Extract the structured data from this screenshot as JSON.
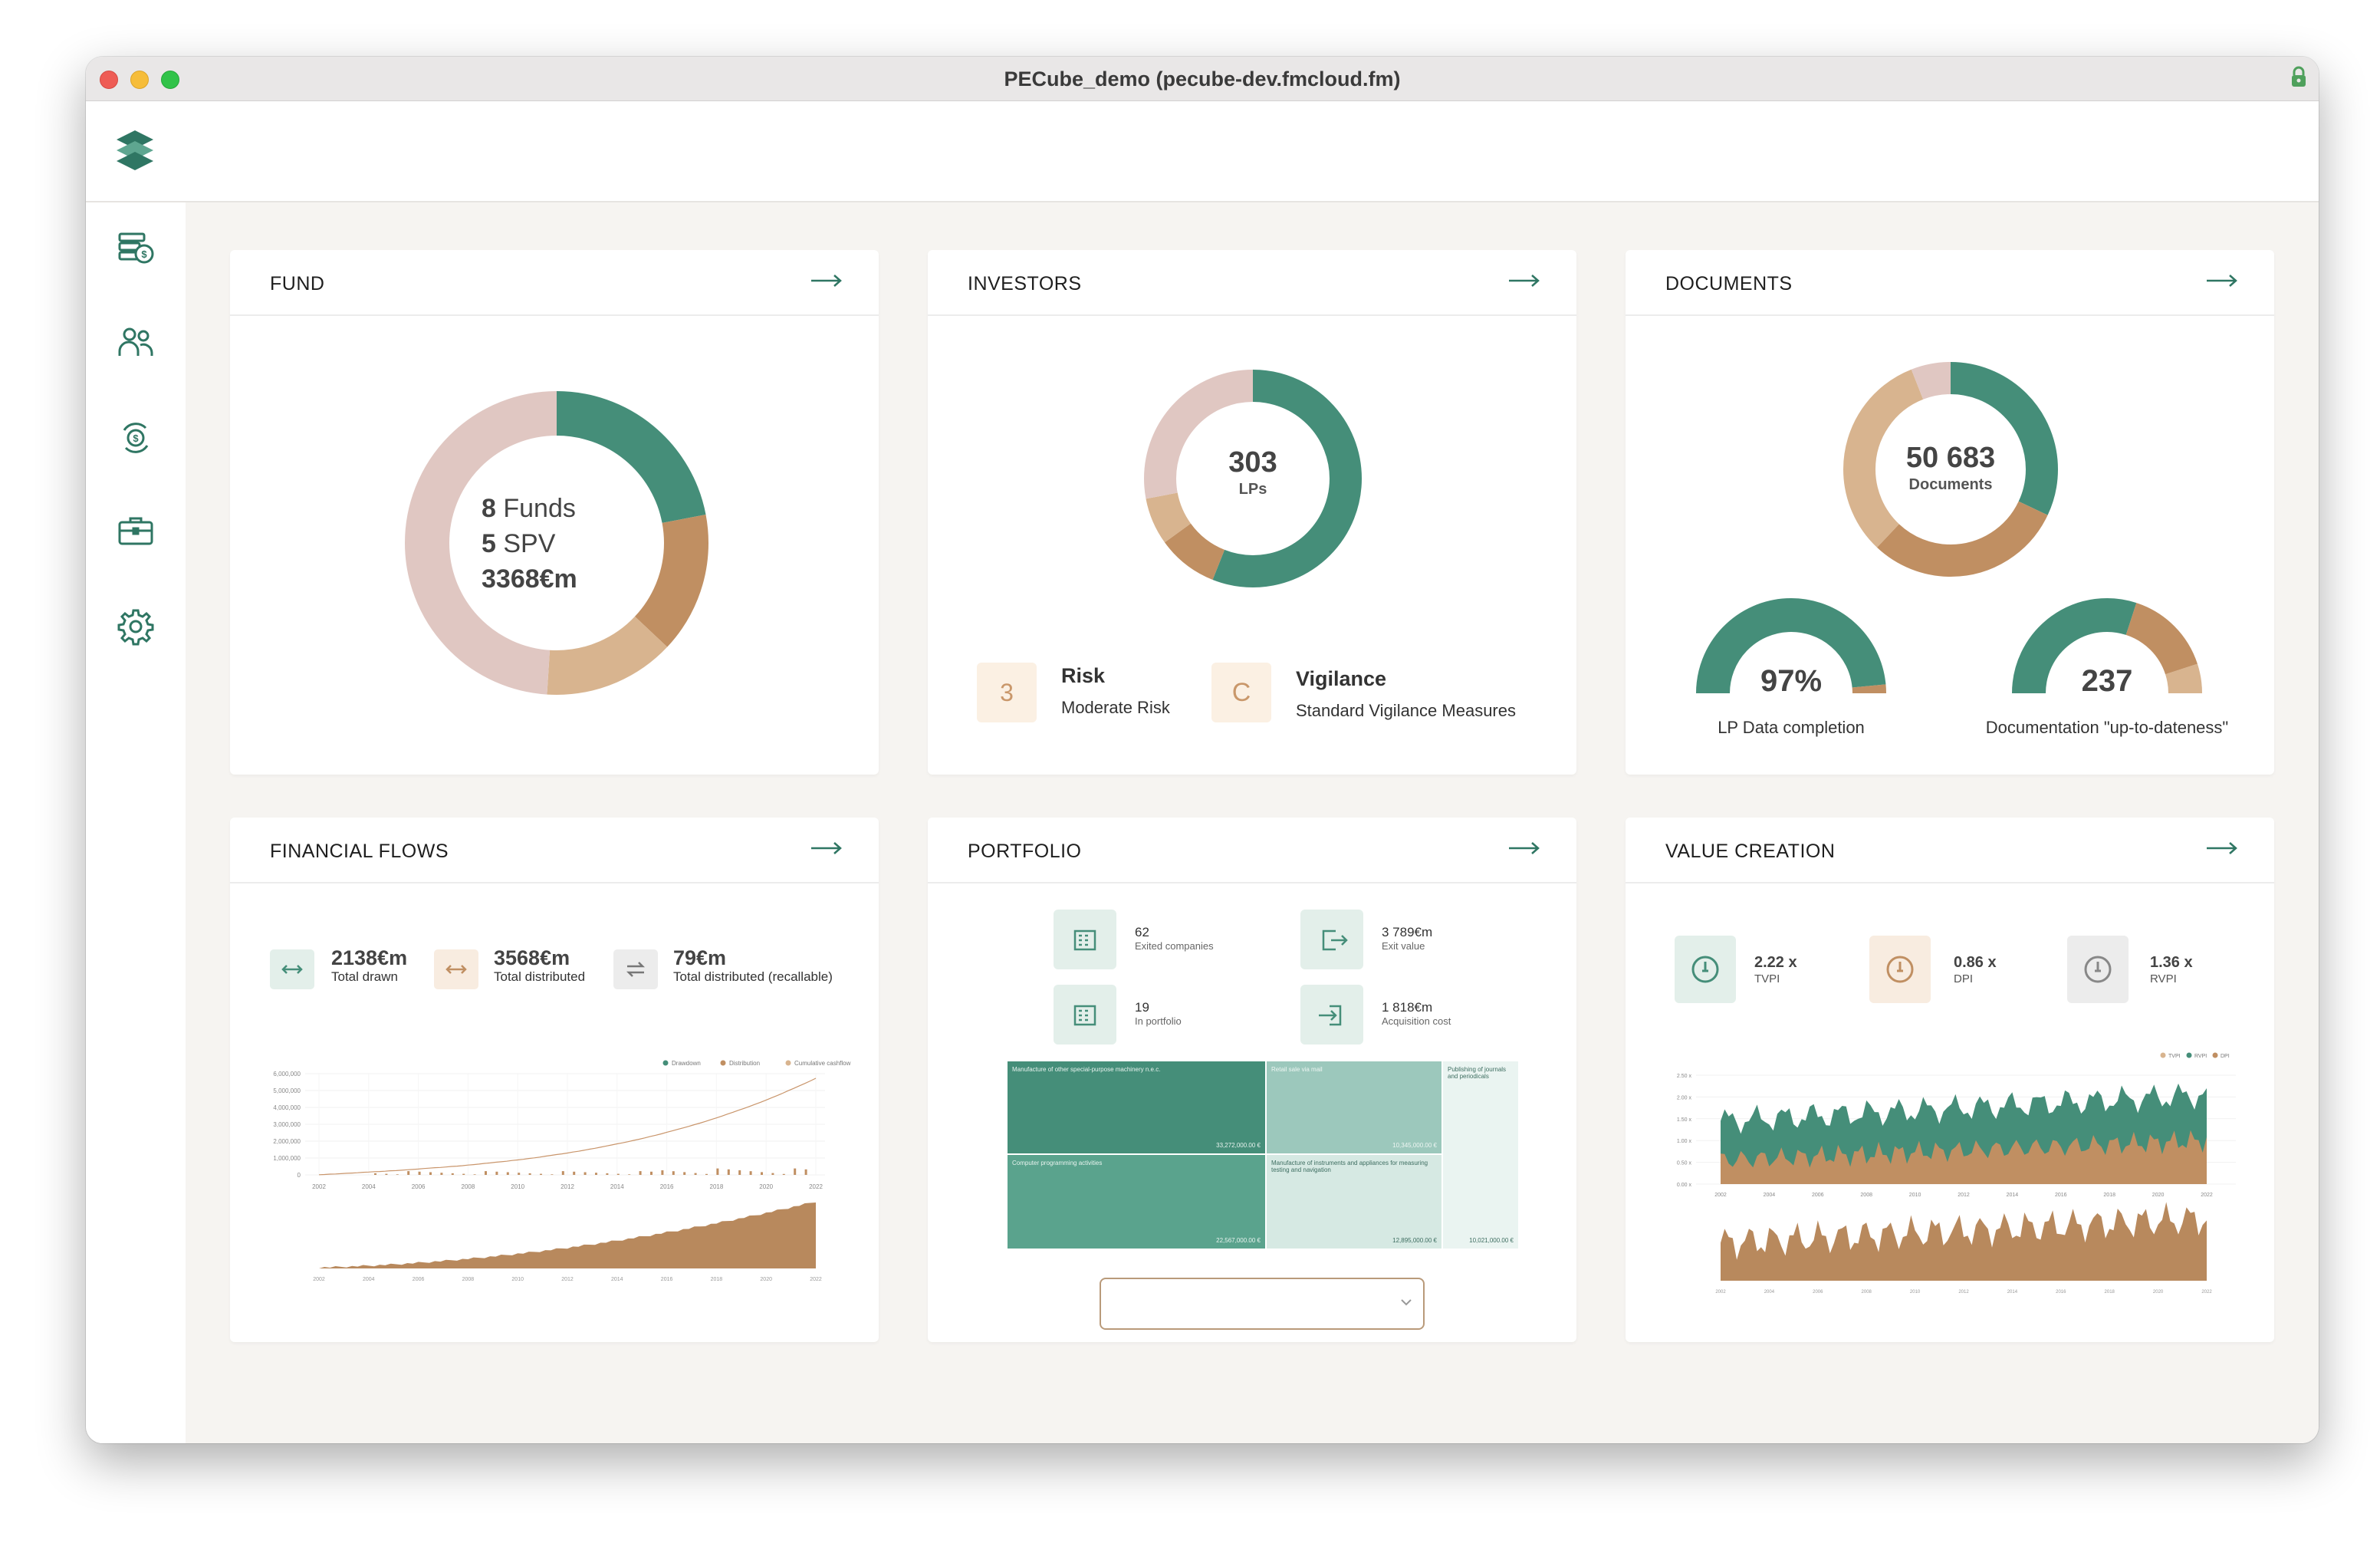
{
  "window": {
    "title": "PECube_demo (pecube-dev.fmcloud.fm)"
  },
  "colors": {
    "green": "#458e79",
    "tan": "#c08f62",
    "light_tan": "#d8b48f",
    "pink": "#e0c7c2",
    "light_green": "#9cc8bc",
    "pale_green": "#d6e9e3"
  },
  "sidebar": {
    "items": [
      {
        "icon": "money-stack-icon"
      },
      {
        "icon": "people-icon"
      },
      {
        "icon": "money-cycle-icon"
      },
      {
        "icon": "briefcase-icon"
      },
      {
        "icon": "gear-icon"
      }
    ]
  },
  "fund": {
    "title": "FUND",
    "line1_num": "8",
    "line1_label": "Funds",
    "line2_num": "5",
    "line2_label": "SPV",
    "line3": "3368€m",
    "donut": [
      {
        "value": 22,
        "color": "#458e79"
      },
      {
        "value": 15,
        "color": "#c08f62"
      },
      {
        "value": 14,
        "color": "#d8b48f"
      },
      {
        "value": 49,
        "color": "#e0c7c2"
      }
    ]
  },
  "investors": {
    "title": "INVESTORS",
    "count": "303",
    "count_label": "LPs",
    "donut": [
      {
        "value": 56,
        "color": "#458e79"
      },
      {
        "value": 9,
        "color": "#c08f62"
      },
      {
        "value": 7,
        "color": "#d8b48f"
      },
      {
        "value": 28,
        "color": "#e0c7c2"
      }
    ],
    "risk": {
      "badge": "3",
      "title": "Risk",
      "desc": "Moderate Risk"
    },
    "vigilance": {
      "badge": "C",
      "title": "Vigilance",
      "desc": "Standard Vigilance Measures"
    }
  },
  "documents": {
    "title": "DOCUMENTS",
    "count": "50 683",
    "count_label": "Documents",
    "donut": [
      {
        "value": 32,
        "color": "#458e79"
      },
      {
        "value": 30,
        "color": "#c08f62"
      },
      {
        "value": 32,
        "color": "#d8b48f"
      },
      {
        "value": 6,
        "color": "#e0c7c2"
      }
    ],
    "gauge1": {
      "value": "97%",
      "label": "LP Data completion",
      "fill": 0.97
    },
    "gauge2": {
      "value": "237",
      "label": "Documentation \"up-to-dateness\"",
      "fill_green": 0.6,
      "fill_tan": 0.3
    }
  },
  "flows": {
    "title": "FINANCIAL FLOWS",
    "drawn": {
      "value": "2138€m",
      "label": "Total drawn"
    },
    "distributed": {
      "value": "3568€m",
      "label": "Total distributed"
    },
    "recallable": {
      "value": "79€m",
      "label": "Total distributed (recallable)"
    },
    "legend": [
      "Drawdown",
      "Distribution",
      "Cumulative cashflow"
    ],
    "yticks": [
      "6,000,000",
      "5,000,000",
      "4,000,000",
      "3,000,000",
      "2,000,000",
      "1,000,000",
      "0"
    ],
    "xticks": [
      "2002",
      "2004",
      "2006",
      "2008",
      "2010",
      "2012",
      "2014",
      "2016",
      "2018",
      "2020",
      "2022"
    ]
  },
  "portfolio": {
    "title": "PORTFOLIO",
    "exited": {
      "value": "62",
      "label": "Exited companies"
    },
    "exit_value": {
      "value": "3 789€m",
      "label": "Exit value"
    },
    "in_portfolio": {
      "value": "19",
      "label": "In portfolio"
    },
    "acquisition": {
      "value": "1 818€m",
      "label": "Acquisition cost"
    },
    "treemap": [
      {
        "label": "Manufacture of other special-purpose machinery n.e.c.",
        "value": "33,272,000.00 €"
      },
      {
        "label": "Computer programming activities",
        "value": "22,567,000.00 €"
      },
      {
        "label": "Retail sale via mail",
        "value": "10,345,000.00 €"
      },
      {
        "label": "Manufacture of instruments and appliances for measuring testing and navigation",
        "value": "12,895,000.00 €"
      },
      {
        "label": "Publishing of journals and periodicals",
        "value": "10,021,000.00 €"
      }
    ]
  },
  "value_creation": {
    "title": "VALUE CREATION",
    "tvpi": {
      "value": "2.22 x",
      "label": "TVPI"
    },
    "dpi": {
      "value": "0.86 x",
      "label": "DPI"
    },
    "rvpi": {
      "value": "1.36 x",
      "label": "RVPI"
    },
    "legend": [
      "TVPI",
      "RVPI",
      "DPI"
    ],
    "yticks": [
      "2.50 x",
      "2.00 x",
      "1.50 x",
      "1.00 x",
      "0.50 x",
      "0.00 x"
    ],
    "xticks": [
      "2002",
      "2004",
      "2006",
      "2008",
      "2010",
      "2012",
      "2014",
      "2016",
      "2018",
      "2020",
      "2022"
    ]
  }
}
